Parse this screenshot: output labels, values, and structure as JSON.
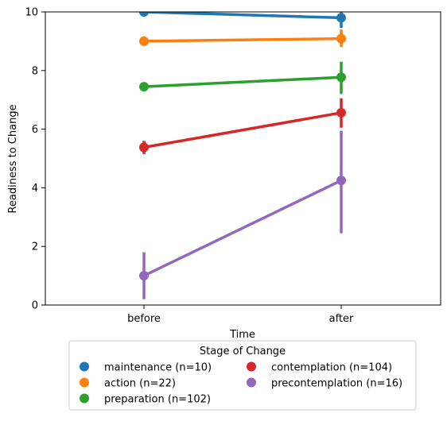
{
  "chart_data": {
    "type": "line",
    "title": "",
    "xlabel": "Time",
    "ylabel": "Readiness to Change",
    "categories": [
      "before",
      "after"
    ],
    "ylim": [
      0,
      10
    ],
    "yticks": [
      0,
      2,
      4,
      6,
      8,
      10
    ],
    "grid": false,
    "legend": {
      "title": "Stage of Change",
      "placement": "below plot, centered, two columns"
    },
    "series": [
      {
        "name": "maintenance (n=10)",
        "color": "#1f77b4",
        "values": [
          10.0,
          9.8
        ],
        "ci": [
          [
            10.0,
            10.0
          ],
          [
            9.45,
            10.0
          ]
        ]
      },
      {
        "name": "action (n=22)",
        "color": "#ff7f0e",
        "values": [
          9.0,
          9.09
        ],
        "ci": [
          [
            9.0,
            9.0
          ],
          [
            8.8,
            9.4
          ]
        ]
      },
      {
        "name": "preparation (n=102)",
        "color": "#2ca02c",
        "values": [
          7.45,
          7.77
        ],
        "ci": [
          [
            7.3,
            7.6
          ],
          [
            7.2,
            8.3
          ]
        ]
      },
      {
        "name": "contemplation (n=104)",
        "color": "#d62728",
        "values": [
          5.38,
          6.56
        ],
        "ci": [
          [
            5.15,
            5.6
          ],
          [
            6.05,
            7.05
          ]
        ]
      },
      {
        "name": "precontemplation (n=16)",
        "color": "#9467bd",
        "values": [
          1.0,
          4.25
        ],
        "ci": [
          [
            0.2,
            1.8
          ],
          [
            2.45,
            5.95
          ]
        ]
      }
    ]
  }
}
